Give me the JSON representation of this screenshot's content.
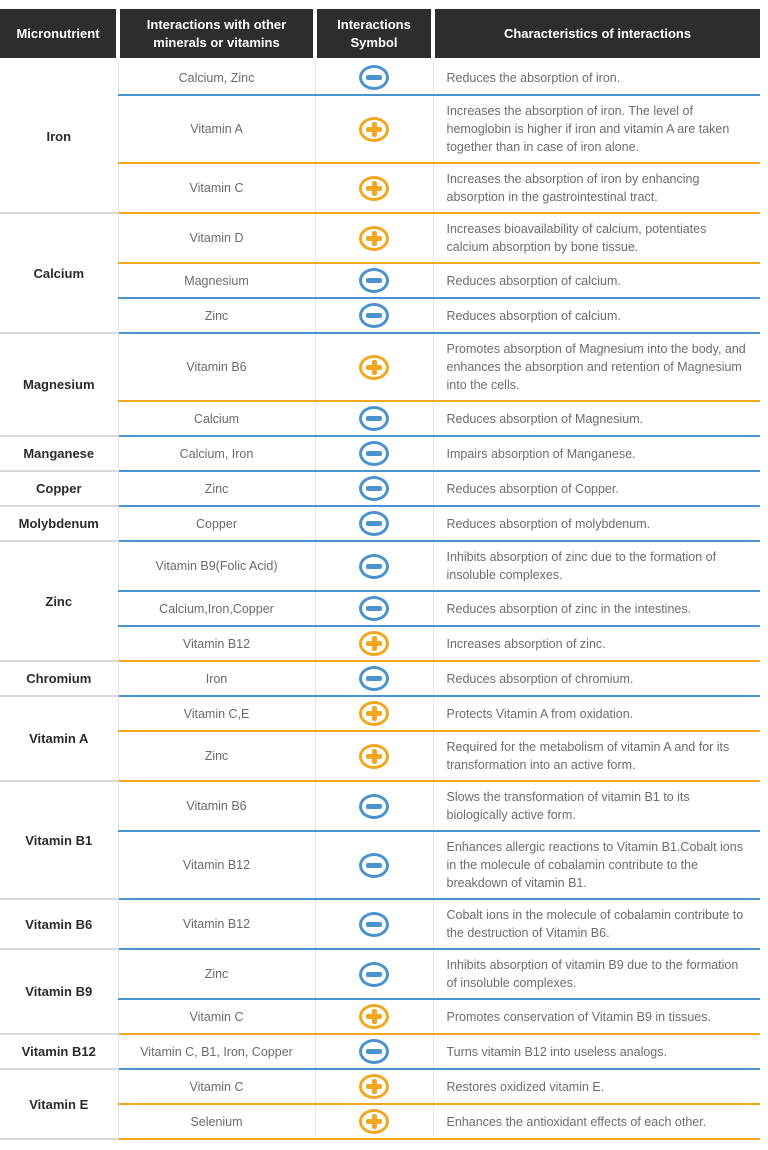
{
  "table": {
    "headers": [
      "Micronutrient",
      "Interactions with other minerals or vitamins",
      "Interactions Symbol",
      "Characteristics of interactions"
    ],
    "symbols": {
      "plus": {
        "icon": "plus-circle-icon",
        "color": "#f2a71e"
      },
      "minus": {
        "icon": "minus-circle-icon",
        "color": "#4a94cd"
      }
    },
    "colors": {
      "header_background": "#2d2d2d",
      "header_text": "#ffffff",
      "group_divider": "#d9d9d9",
      "cell_divider": "#e4e4e4",
      "body_text": "#6d6d6d",
      "micronutrient_text": "#2b2b2b"
    },
    "groups": [
      {
        "micronutrient": "Iron",
        "rows": [
          {
            "interaction": "Calcium, Zinc",
            "symbol": "minus",
            "characteristic": "Reduces the absorption of iron."
          },
          {
            "interaction": "Vitamin A",
            "symbol": "plus",
            "characteristic": "Increases the absorption of iron. The level of hemoglobin is higher if iron and vitamin A are taken together than in case of iron alone."
          },
          {
            "interaction": "Vitamin C",
            "symbol": "plus",
            "characteristic": "Increases the absorption of iron by enhancing absorption in the gastrointestinal tract."
          }
        ]
      },
      {
        "micronutrient": "Calcium",
        "rows": [
          {
            "interaction": "Vitamin D",
            "symbol": "plus",
            "characteristic": "Increases bioavailability of calcium, potentiates calcium absorption by bone tissue."
          },
          {
            "interaction": "Magnesium",
            "symbol": "minus",
            "characteristic": "Reduces absorption of calcium."
          },
          {
            "interaction": "Zinc",
            "symbol": "minus",
            "characteristic": "Reduces absorption of calcium."
          }
        ]
      },
      {
        "micronutrient": "Magnesium",
        "rows": [
          {
            "interaction": "Vitamin B6",
            "symbol": "plus",
            "characteristic": "Promotes absorption of Magnesium into the body, and enhances the absorption and retention of Magnesium into the cells."
          },
          {
            "interaction": "Calcium",
            "symbol": "minus",
            "characteristic": "Reduces absorption of Magnesium."
          }
        ]
      },
      {
        "micronutrient": "Manganese",
        "rows": [
          {
            "interaction": "Calcium, Iron",
            "symbol": "minus",
            "characteristic": "Impairs absorption of Manganese."
          }
        ]
      },
      {
        "micronutrient": "Copper",
        "rows": [
          {
            "interaction": "Zinc",
            "symbol": "minus",
            "characteristic": "Reduces absorption of Copper."
          }
        ]
      },
      {
        "micronutrient": "Molybdenum",
        "rows": [
          {
            "interaction": "Copper",
            "symbol": "minus",
            "characteristic": "Reduces absorption of molybdenum."
          }
        ]
      },
      {
        "micronutrient": "Zinc",
        "rows": [
          {
            "interaction": "Vitamin B9(Folic Acid)",
            "symbol": "minus",
            "characteristic": "Inhibits absorption of zinc due to the formation of insoluble complexes."
          },
          {
            "interaction": "Calcium,Iron,Copper",
            "symbol": "minus",
            "characteristic": "Reduces absorption of zinc in the intestines."
          },
          {
            "interaction": "Vitamin B12",
            "symbol": "plus",
            "characteristic": "Increases absorption of zinc."
          }
        ]
      },
      {
        "micronutrient": "Chromium",
        "rows": [
          {
            "interaction": "Iron",
            "symbol": "minus",
            "characteristic": "Reduces absorption of chromium."
          }
        ]
      },
      {
        "micronutrient": "Vitamin A",
        "rows": [
          {
            "interaction": "Vitamin C,E",
            "symbol": "plus",
            "characteristic": "Protects Vitamin A from oxidation."
          },
          {
            "interaction": "Zinc",
            "symbol": "plus",
            "characteristic": "Required for the metabolism of vitamin A and for its transformation into an active form."
          }
        ]
      },
      {
        "micronutrient": "Vitamin B1",
        "rows": [
          {
            "interaction": "Vitamin B6",
            "symbol": "minus",
            "characteristic": "Slows the transformation of vitamin B1 to its biologically active form."
          },
          {
            "interaction": "Vitamin B12",
            "symbol": "minus",
            "characteristic": "Enhances allergic reactions to Vitamin B1.Cobalt ions in the molecule of cobalamin contribute to the breakdown of vitamin B1."
          }
        ]
      },
      {
        "micronutrient": "Vitamin B6",
        "rows": [
          {
            "interaction": "Vitamin B12",
            "symbol": "minus",
            "characteristic": "Cobalt ions in the molecule of cobalamin contribute to the destruction of Vitamin B6."
          }
        ]
      },
      {
        "micronutrient": "Vitamin B9",
        "rows": [
          {
            "interaction": "Zinc",
            "symbol": "minus",
            "characteristic": "Inhibits absorption of vitamin B9 due to the formation of insoluble complexes."
          },
          {
            "interaction": "Vitamin C",
            "symbol": "plus",
            "characteristic": "Promotes conservation of Vitamin B9 in tissues."
          }
        ]
      },
      {
        "micronutrient": "Vitamin B12",
        "rows": [
          {
            "interaction": "Vitamin C, B1, Iron, Copper",
            "symbol": "minus",
            "characteristic": "Turns vitamin B12 into useless analogs."
          }
        ]
      },
      {
        "micronutrient": "Vitamin E",
        "rows": [
          {
            "interaction": "Vitamin C",
            "symbol": "plus",
            "characteristic": "Restores oxidized vitamin E."
          },
          {
            "interaction": "Selenium",
            "symbol": "plus",
            "characteristic": "Enhances the antioxidant effects of each other."
          }
        ]
      }
    ]
  }
}
